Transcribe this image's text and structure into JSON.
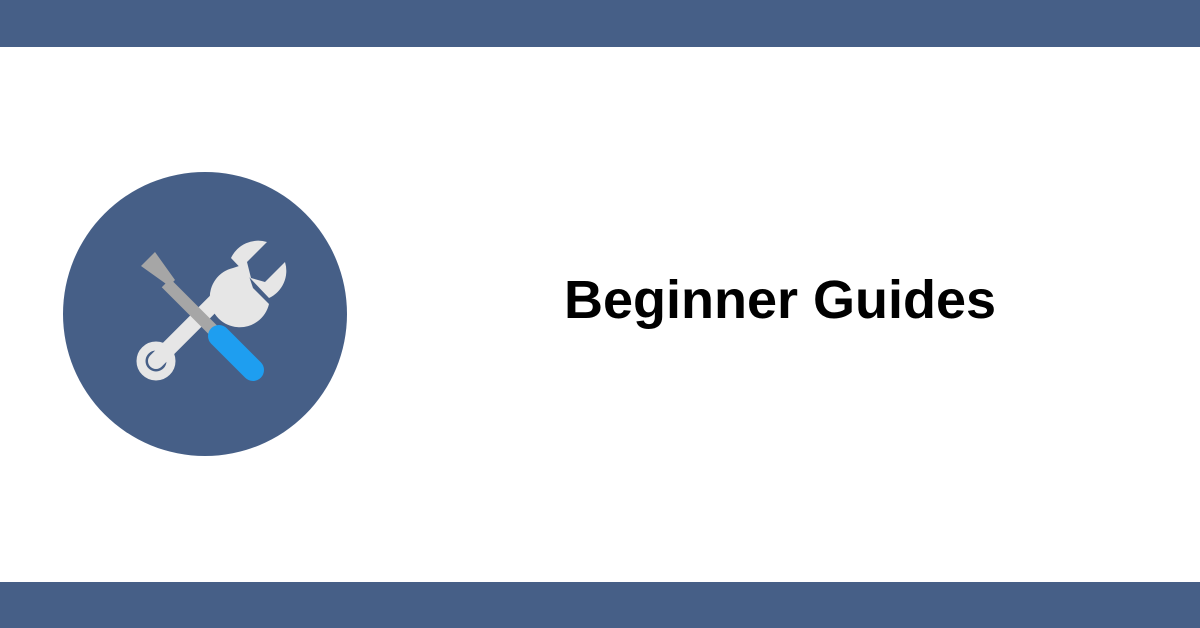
{
  "title": "Beginner Guides",
  "icon": "tools-icon",
  "colors": {
    "brand": "#465f87",
    "background": "#ffffff",
    "text": "#000000",
    "tool_gray": "#e6e6e6",
    "tool_tip_gray": "#a6a6a6",
    "handle_blue": "#1e9ef0"
  }
}
